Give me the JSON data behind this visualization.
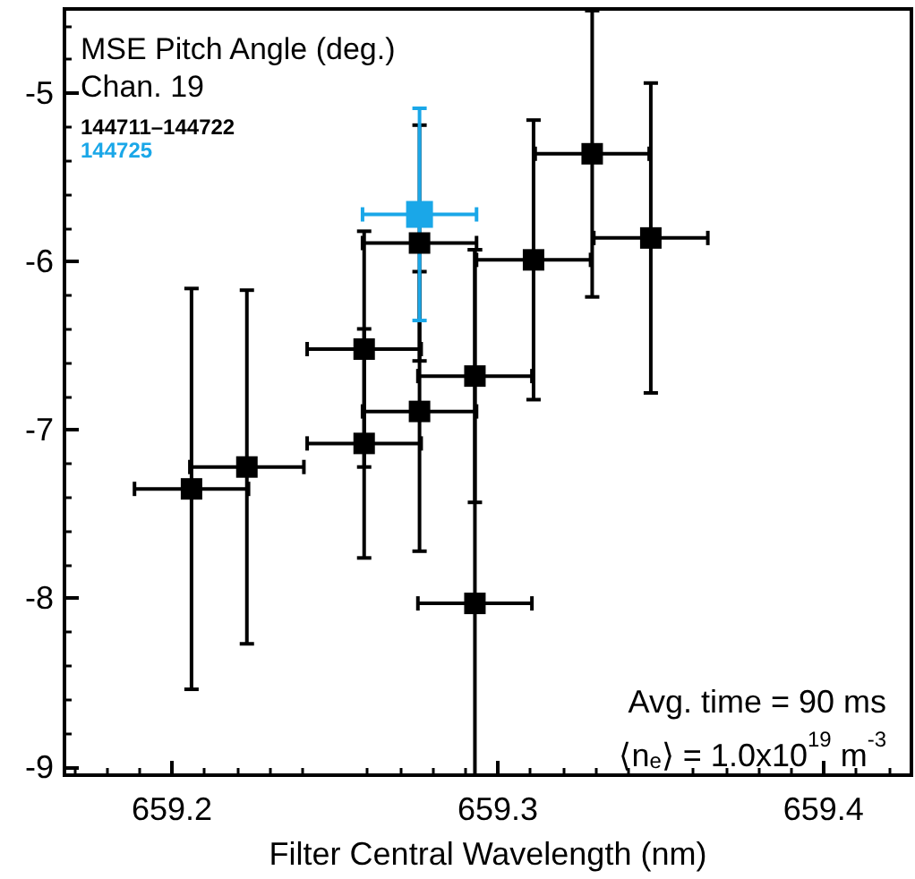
{
  "chart_data": {
    "type": "scatter",
    "title": "MSE Pitch Angle (deg.)",
    "subtitle": "Chan. 19",
    "xlabel": "Filter Central Wavelength (nm)",
    "annotations": [
      "Avg. time = 90 ms",
      "⟨n$_{e}$⟩ = 1.0x10$^{19}$ m$^{-3}$"
    ],
    "series": [
      {
        "name": "144711–144722",
        "color": "#000000",
        "x": [
          659.206,
          659.223,
          659.259,
          659.259,
          659.276,
          659.276,
          659.293,
          659.293,
          659.311,
          659.329,
          659.347
        ],
        "values": [
          -7.35,
          -7.22,
          -6.52,
          -7.08,
          -5.89,
          -6.89,
          -6.68,
          -8.03,
          -5.99,
          -5.36,
          -5.86
        ],
        "errors": [
          1.19,
          1.05,
          0.7,
          0.68,
          0.7,
          0.83,
          0.75,
          [
            -9.05,
            -5.93
          ],
          0.83,
          0.85,
          0.92
        ],
        "xerrors": [
          0.0175,
          0.0175,
          0.0175,
          0.0175,
          0.0175,
          0.0175,
          0.0175,
          0.0175,
          0.0175,
          0.0175,
          0.0175
        ]
      },
      {
        "name": "144725",
        "color": "#1aa7e8",
        "x": [
          659.276
        ],
        "values": [
          -5.72
        ],
        "errors": [
          0.63
        ],
        "xerrors": [
          0.0175
        ]
      }
    ],
    "xlim": [
      659.167,
      659.427
    ],
    "xticks": [
      659.2,
      659.3,
      659.4
    ],
    "ylim": [
      -9.05,
      -4.5
    ],
    "yticks": [
      -9,
      -8,
      -7,
      -6,
      -5
    ],
    "grid": false,
    "legend": "top left",
    "marker": "square"
  }
}
